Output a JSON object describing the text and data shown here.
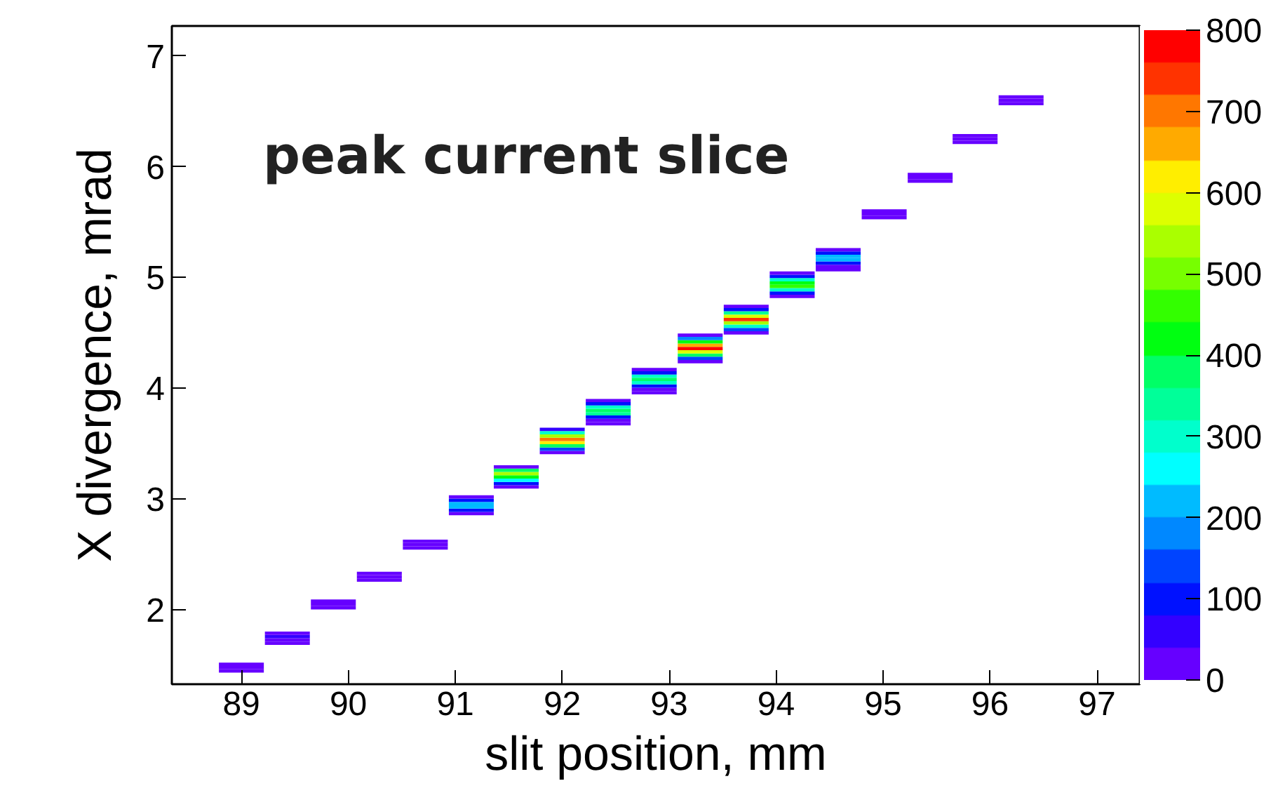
{
  "chart_data": {
    "type": "bar",
    "grid": false,
    "xlabel": "slit position, mm",
    "ylabel": "X divergence, mrad",
    "annotations": [
      "peak current slice"
    ],
    "xlim": [
      88.35,
      97.4
    ],
    "xticks": [
      89,
      90,
      91,
      92,
      93,
      94,
      95,
      96,
      97
    ],
    "ylim": [
      1.33,
      7.27
    ],
    "yticks": [
      2,
      3,
      4,
      5,
      6,
      7
    ],
    "clim": [
      0,
      800
    ],
    "cticks": [
      0,
      100,
      200,
      300,
      400,
      500,
      600,
      700,
      800
    ],
    "series": [
      {
        "x": [
          89.0,
          89.43,
          89.86,
          90.29,
          90.72,
          91.15,
          91.57,
          92.0,
          92.43,
          92.86,
          93.29,
          93.72,
          94.15,
          94.58,
          95.01,
          95.44,
          95.86,
          96.29
        ],
        "base": [
          1.435,
          1.685,
          2.005,
          2.255,
          2.545,
          2.855,
          3.095,
          3.405,
          3.665,
          3.945,
          4.225,
          4.485,
          4.815,
          5.055,
          5.525,
          5.855,
          6.205,
          6.555
        ],
        "values": [
          0.03,
          0.03,
          0.03,
          0.03,
          0.03,
          0.03,
          0.03,
          0.03,
          0.03,
          0.03,
          0.03,
          0.03,
          0.03,
          0.03,
          0.03,
          0.03,
          0.03,
          0.03
        ],
        "colors": [
          "#6600ff",
          "#6600ff",
          "#6600ff",
          "#6600ff",
          "#6600ff",
          "#6600ff",
          "#6600ff",
          "#6600ff",
          "#6600ff",
          "#6600ff",
          "#6600ff",
          "#6600ff",
          "#6600ff",
          "#6600ff",
          "#6600ff",
          "#6600ff",
          "#6600ff",
          "#6600ff"
        ]
      },
      {
        "x": [
          89.0,
          89.43,
          89.86,
          90.29,
          90.72,
          91.15,
          91.57,
          92.0,
          92.43,
          92.86,
          93.29,
          93.72,
          94.15,
          94.58,
          95.01,
          95.44,
          95.86,
          96.29
        ],
        "base": [
          1.465,
          1.715,
          2.035,
          2.285,
          2.575,
          2.885,
          3.125,
          3.435,
          3.695,
          3.975,
          4.255,
          4.515,
          4.845,
          5.085,
          5.555,
          5.885,
          6.235,
          6.585
        ],
        "values": [
          0.03,
          0.03,
          0.03,
          0.03,
          0.03,
          0.03,
          0.03,
          0.03,
          0.03,
          0.03,
          0.03,
          0.03,
          0.03,
          0.03,
          0.03,
          0.03,
          0.03,
          0.03
        ],
        "colors": [
          "#6600ff",
          "#6600ff",
          "#6600ff",
          "#6600ff",
          "#6600ff",
          "#0011ff",
          "#0011ff",
          "#0044ff",
          "#6600ff",
          "#6600ff",
          "#0044ff",
          "#0044ff",
          "#0011ff",
          "#6600ff",
          "#6600ff",
          "#6600ff",
          "#6600ff",
          "#6600ff"
        ]
      },
      {
        "x": [
          89.0,
          89.43,
          89.86,
          90.29,
          90.72,
          91.15,
          91.57,
          92.0,
          92.43,
          92.86,
          93.29,
          93.72,
          94.15,
          94.58,
          95.01,
          95.44,
          95.86,
          96.29
        ],
        "base": [
          1.495,
          1.745,
          2.065,
          2.315,
          2.605,
          2.915,
          3.155,
          3.465,
          3.725,
          4.005,
          4.285,
          4.545,
          4.875,
          5.115,
          5.585,
          5.915,
          6.265,
          6.615
        ],
        "values": [
          0.03,
          0.03,
          0.03,
          0.03,
          0.03,
          0.03,
          0.03,
          0.03,
          0.03,
          0.03,
          0.03,
          0.03,
          0.03,
          0.03,
          0.03,
          0.03,
          0.03,
          0.03
        ],
        "colors": [
          "#6600ff",
          "#3300ff",
          "#6600ff",
          "#6600ff",
          "#6600ff",
          "#00bbff",
          "#00ffff",
          "#00ff66",
          "#0011ff",
          "#0011ff",
          "#00ff66",
          "#00ffcc",
          "#00ffcc",
          "#0011ff",
          "#6600ff",
          "#6600ff",
          "#6600ff",
          "#6600ff"
        ]
      },
      {
        "x": [
          89.43,
          91.15,
          91.57,
          92.0,
          92.43,
          92.86,
          93.29,
          93.72,
          94.15,
          94.58
        ],
        "base": [
          1.775,
          2.945,
          3.185,
          3.495,
          3.755,
          4.035,
          4.315,
          4.575,
          4.905,
          5.145
        ],
        "values": [
          0.03,
          0.03,
          0.03,
          0.03,
          0.03,
          0.03,
          0.03,
          0.03,
          0.03,
          0.03
        ],
        "colors": [
          "#6600ff",
          "#00bbff",
          "#00ff11",
          "#ffee00",
          "#00ff99",
          "#00ffcc",
          "#ddff00",
          "#aaff00",
          "#33ff00",
          "#00bbff"
        ]
      },
      {
        "x": [
          91.15,
          91.57,
          92.0,
          92.43,
          92.86,
          93.29,
          93.72,
          94.15,
          94.58
        ],
        "base": [
          2.975,
          3.215,
          3.525,
          3.785,
          4.065,
          4.345,
          4.605,
          4.935,
          5.175
        ],
        "values": [
          0.03,
          0.03,
          0.03,
          0.03,
          0.03,
          0.03,
          0.03,
          0.03,
          0.03
        ],
        "colors": [
          "#0011ff",
          "#aaff00",
          "#ff7700",
          "#00ff66",
          "#00ff66",
          "#ff0000",
          "#ff3300",
          "#00ff11",
          "#00bbff"
        ]
      },
      {
        "x": [
          91.15,
          91.57,
          92.0,
          92.43,
          92.86,
          93.29,
          93.72,
          94.15,
          94.58
        ],
        "base": [
          3.005,
          3.245,
          3.555,
          3.815,
          4.095,
          4.375,
          4.635,
          4.965,
          5.205
        ],
        "values": [
          0.03,
          0.03,
          0.03,
          0.03,
          0.03,
          0.03,
          0.03,
          0.03,
          0.03
        ],
        "colors": [
          "#6600ff",
          "#00ff66",
          "#aaff00",
          "#00ffcc",
          "#00ffcc",
          "#ffaa00",
          "#ddff00",
          "#00ffcc",
          "#0011ff"
        ]
      },
      {
        "x": [
          91.57,
          92.0,
          92.43,
          92.86,
          93.29,
          93.72,
          94.15,
          94.58
        ],
        "base": [
          3.275,
          3.585,
          3.845,
          4.125,
          4.405,
          4.665,
          4.995,
          5.235
        ],
        "values": [
          0.03,
          0.03,
          0.03,
          0.03,
          0.03,
          0.03,
          0.03,
          0.03
        ],
        "colors": [
          "#6600ff",
          "#00ffcc",
          "#0011ff",
          "#0011ff",
          "#00ff11",
          "#00ff99",
          "#0011ff",
          "#6600ff"
        ]
      },
      {
        "x": [
          92.0,
          92.43,
          92.86,
          93.29,
          93.72,
          94.15
        ],
        "base": [
          3.615,
          3.875,
          4.155,
          4.435,
          4.695,
          5.025
        ],
        "values": [
          0.03,
          0.03,
          0.03,
          0.03,
          0.03,
          0.03
        ],
        "colors": [
          "#3300ff",
          "#6600ff",
          "#6600ff",
          "#0088ff",
          "#0011ff",
          "#6600ff"
        ]
      },
      {
        "x": [
          93.29,
          93.72
        ],
        "base": [
          4.465,
          4.725
        ],
        "values": [
          0.03,
          0.03
        ],
        "colors": [
          "#6600ff",
          "#6600ff"
        ]
      }
    ]
  }
}
